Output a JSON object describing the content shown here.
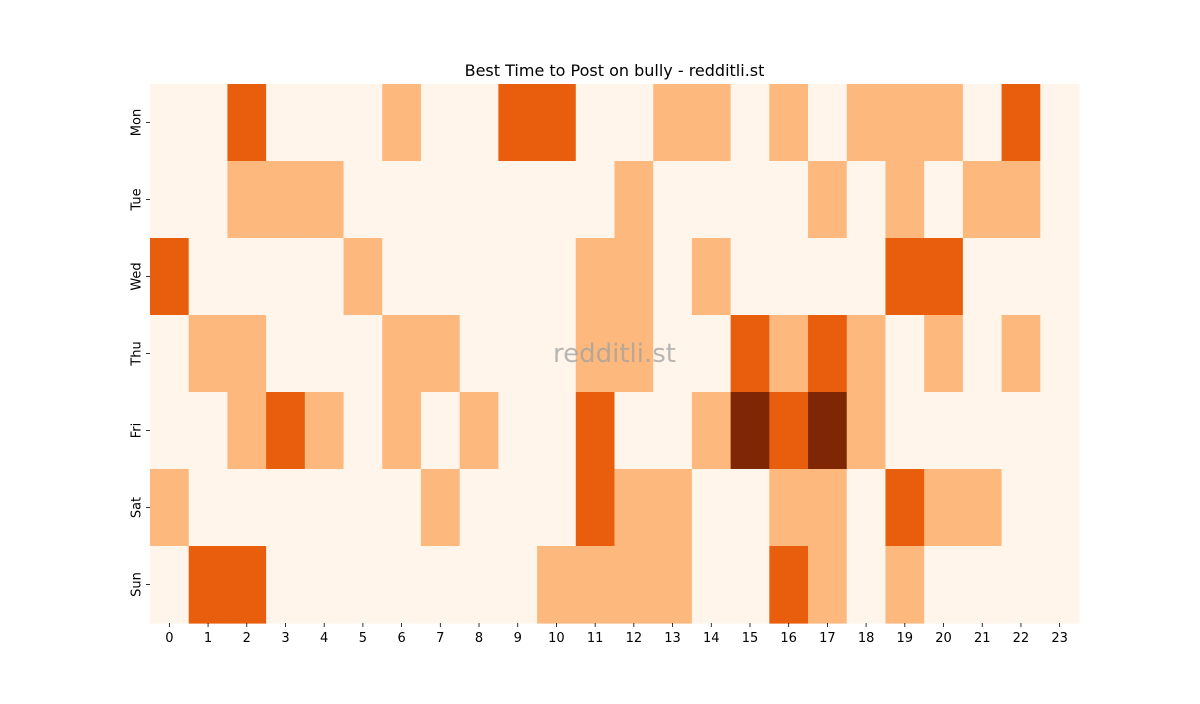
{
  "chart_data": {
    "type": "heatmap",
    "title": "Best Time to Post on bully - redditli.st",
    "watermark": "redditli.st",
    "xlabel": "",
    "ylabel": "",
    "x_categories": [
      "0",
      "1",
      "2",
      "3",
      "4",
      "5",
      "6",
      "7",
      "8",
      "9",
      "10",
      "11",
      "12",
      "13",
      "14",
      "15",
      "16",
      "17",
      "18",
      "19",
      "20",
      "21",
      "22",
      "23"
    ],
    "y_categories": [
      "Mon",
      "Tue",
      "Wed",
      "Thu",
      "Fri",
      "Sat",
      "Sun"
    ],
    "value_range": [
      0,
      3
    ],
    "colormap": [
      "#fff5eb",
      "#fdb97d",
      "#e95e0d",
      "#7f2704"
    ],
    "values": [
      [
        0,
        0,
        2,
        0,
        0,
        0,
        1,
        0,
        0,
        2,
        2,
        0,
        0,
        1,
        1,
        0,
        1,
        0,
        1,
        1,
        1,
        0,
        2,
        0
      ],
      [
        0,
        0,
        1,
        1,
        1,
        0,
        0,
        0,
        0,
        0,
        0,
        0,
        1,
        0,
        0,
        0,
        0,
        1,
        0,
        1,
        0,
        1,
        1,
        0
      ],
      [
        2,
        0,
        0,
        0,
        0,
        1,
        0,
        0,
        0,
        0,
        0,
        1,
        1,
        0,
        1,
        0,
        0,
        0,
        0,
        2,
        2,
        0,
        0,
        0
      ],
      [
        0,
        1,
        1,
        0,
        0,
        0,
        1,
        1,
        0,
        0,
        0,
        1,
        1,
        0,
        0,
        2,
        1,
        2,
        1,
        0,
        1,
        0,
        1,
        0
      ],
      [
        0,
        0,
        1,
        2,
        1,
        0,
        1,
        0,
        1,
        0,
        0,
        2,
        0,
        0,
        1,
        3,
        2,
        3,
        1,
        0,
        0,
        0,
        0,
        0
      ],
      [
        1,
        0,
        0,
        0,
        0,
        0,
        0,
        1,
        0,
        0,
        0,
        2,
        1,
        1,
        0,
        0,
        1,
        1,
        0,
        2,
        1,
        1,
        0,
        0
      ],
      [
        0,
        2,
        2,
        0,
        0,
        0,
        0,
        0,
        0,
        0,
        1,
        1,
        1,
        1,
        0,
        0,
        2,
        1,
        0,
        1,
        0,
        0,
        0,
        0
      ]
    ]
  }
}
